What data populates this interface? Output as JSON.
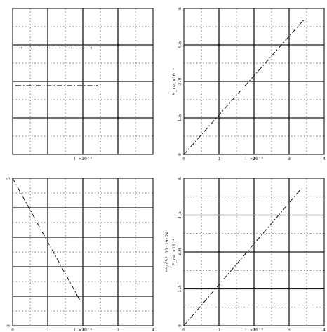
{
  "chart_data": [
    {
      "type": "line",
      "title": "",
      "xlabel": "T ×10⁻⁴",
      "ylabel": "",
      "side_label": "",
      "xlim": [
        0,
        8
      ],
      "ylim": [
        0,
        7
      ],
      "x_ticks": [
        "",
        "",
        "",
        "",
        ""
      ],
      "y_ticks": [
        "",
        "",
        "",
        "",
        ""
      ],
      "series": [
        {
          "x": [
            0.5,
            4.5
          ],
          "y": [
            5.1,
            5.1
          ]
        },
        {
          "x": [
            0.2,
            4.8
          ],
          "y": [
            3.3,
            3.3
          ]
        }
      ]
    },
    {
      "type": "line",
      "title": "",
      "xlabel": "T ×10⁻⁴",
      "ylabel": "M_re ×10⁻⁴",
      "side_label": "**/√5² 11:3:24",
      "xlim": [
        0,
        4
      ],
      "ylim": [
        0,
        6
      ],
      "x_ticks": [
        "0",
        "1",
        "2",
        "3",
        "4"
      ],
      "y_ticks": [
        "0",
        "1.5",
        "3.0",
        "4.5",
        "6"
      ],
      "series": [
        {
          "x": [
            0,
            3.4
          ],
          "y": [
            0,
            5.5
          ]
        }
      ]
    },
    {
      "type": "line",
      "title": "",
      "xlabel": "T ×10⁻⁴",
      "ylabel": "",
      "side_label": "**/√5² 11:19:24",
      "xlim": [
        0,
        4
      ],
      "ylim": [
        0,
        5
      ],
      "x_ticks": [
        "0",
        "1",
        "2",
        "3",
        "4"
      ],
      "y_ticks": [
        "0",
        "",
        "",
        "",
        "",
        "5"
      ],
      "series": [
        {
          "x": [
            0,
            1.9
          ],
          "y": [
            5,
            0.9
          ]
        }
      ]
    },
    {
      "type": "line",
      "title": "",
      "xlabel": "T ×10⁻⁴",
      "ylabel": "F_re ×10⁻⁴",
      "side_label": "**/√5² 11:18:24",
      "xlim": [
        0,
        4
      ],
      "ylim": [
        0,
        6
      ],
      "x_ticks": [
        "0",
        "1",
        "2",
        "3",
        "4"
      ],
      "y_ticks": [
        "0",
        "1.5",
        "3.0",
        "4.5",
        "6"
      ],
      "series": [
        {
          "x": [
            0,
            3.3
          ],
          "y": [
            0,
            5.5
          ]
        }
      ]
    }
  ]
}
